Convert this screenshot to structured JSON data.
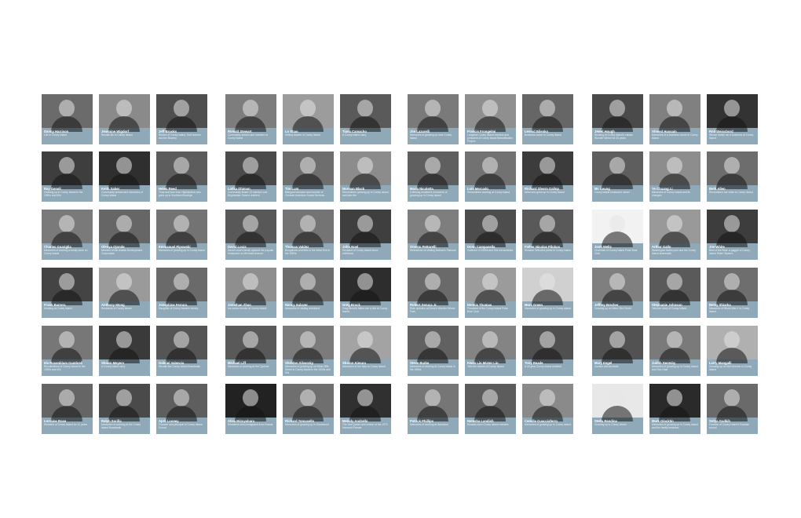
{
  "wall": {
    "panels": [
      {
        "cards": [
          {
            "name": "Danny Harrison",
            "desc": "Life in Coney Island",
            "tone": "#6b6b6b"
          },
          {
            "name": "Jeannine Wigdorf",
            "desc": "Recalls life in Coney Island",
            "tone": "#8a8a8a"
          },
          {
            "name": "Jeff Brooks",
            "desc": "Stories of Coney Island, Surf Avenue and the Bowery",
            "tone": "#4f4f4f"
          },
          {
            "name": "Ray Geneli",
            "desc": "Growing up in Coney Island in the 1950s and 60s",
            "tone": "#3e3e3e"
          },
          {
            "name": "Keith Saber",
            "desc": "Community activist and memories of Coney Island",
            "tone": "#2f2f2f"
          },
          {
            "name": "Helen Reed",
            "desc": "Trust and love from Highlanders who grew up in Southern Brooklyn",
            "tone": "#5c5c5c"
          },
          {
            "name": "Charles Guariglia",
            "desc": "Memories of working a family store on Coney Island",
            "tone": "#7a7a7a"
          },
          {
            "name": "Olenya Ojonde",
            "desc": "Member of the Astella Development Corporation",
            "tone": "#666666"
          },
          {
            "name": "Emmanuel Pipowski",
            "desc": "Memories of growing up in Coney Island",
            "tone": "#737373"
          },
          {
            "name": "Frank Barrera",
            "desc": "Working at Coney Island",
            "tone": "#444444"
          },
          {
            "name": "Anthony Wong",
            "desc": "Residents of Coney Island",
            "tone": "#9a9a9a"
          },
          {
            "name": "Josephine Ferrara",
            "desc": "Daughter of Coney Island's history",
            "tone": "#6a6a6a"
          },
          {
            "name": "Ida Rosenblum Gambrell",
            "desc": "Recollections of Coney Island in the 1930s and 40s",
            "tone": "#777777"
          },
          {
            "name": "Shawn Meyers",
            "desc": "A Coney Island story",
            "tone": "#3a3a3a"
          },
          {
            "name": "Gabriel Valencia",
            "desc": "Recalls the Coney Island Boardwalk",
            "tone": "#555555"
          },
          {
            "name": "Lorraine Rose",
            "desc": "Resident of Coney Island for 41 years",
            "tone": "#656565"
          },
          {
            "name": "Ralph Sorilla",
            "desc": "Memories of working at the Coney Island Boardwalk",
            "tone": "#4a4a4a"
          },
          {
            "name": "April Looney",
            "desc": "Founder and principal of Coney Island School",
            "tone": "#5e5e5e"
          }
        ]
      },
      {
        "cards": [
          {
            "name": "Ronald Stewart",
            "desc": "Community activist and member of Coney Island",
            "tone": "#7d7d7d"
          },
          {
            "name": "Lo Shao",
            "desc": "Selling sweets in Coney Island",
            "tone": "#9c9c9c"
          },
          {
            "name": "Tiana Camacho",
            "desc": "A Coney Island story",
            "tone": "#5a5a5a"
          },
          {
            "name": "Latika Dhiman",
            "desc": "Community Board 13 member and Brightwater Towers resident",
            "tone": "#4b4b4b"
          },
          {
            "name": "Tim Lum",
            "desc": "Bilingual educator and founder of Chinese American Social Services",
            "tone": "#6e6e6e"
          },
          {
            "name": "Norman Black",
            "desc": "Remembers growing up in Coney Island and later life",
            "tone": "#8c8c8c"
          },
          {
            "name": "David Louis",
            "desc": "David Louis's family opened the popular restaurant on Mermaid Avenue",
            "tone": "#585858"
          },
          {
            "name": "Thomas Valdez",
            "desc": "Bungalows and fires in the West End in the 1960s",
            "tone": "#747474"
          },
          {
            "name": "John Noel",
            "desc": "Resident of Coney Island since childhood",
            "tone": "#3f3f3f"
          },
          {
            "name": "Jonathan Zhao",
            "desc": "Ice cream vendor at Coney Island",
            "tone": "#8e8e8e"
          },
          {
            "name": "Nancy Sulaver",
            "desc": "Memories of visiting Astroland",
            "tone": "#6c6c6c"
          },
          {
            "name": "Greg Brock",
            "desc": "Greg Brock's father ran a ride at Coney Island",
            "tone": "#2d2d2d"
          },
          {
            "name": "Michael Liff",
            "desc": "Memories of working at the Cyclone",
            "tone": "#595959"
          },
          {
            "name": "Sheldon Silversky",
            "desc": "Memories of growing up on West 28th Street in Coney Island in the 1940s and 50s",
            "tone": "#7b7b7b"
          },
          {
            "name": "Sharon Kimura",
            "desc": "Memories of her trips to Coney Island",
            "tone": "#a3a3a3"
          },
          {
            "name": "Alisa Mizuyabara",
            "desc": "Residents who immigrated from Russia",
            "tone": "#222222"
          },
          {
            "name": "Richard Tomasello",
            "desc": "Memories of growing up in Gravesend",
            "tone": "#6f6f6f"
          },
          {
            "name": "Melody Andrello",
            "desc": "The Sea Queen and winner of the 1972 Mermaid Parade",
            "tone": "#303030"
          }
        ]
      },
      {
        "cards": [
          {
            "name": "Jim Lazarelli",
            "desc": "Memories of growing up near Coney Island",
            "tone": "#7a7a7a"
          },
          {
            "name": "Francis Frongelmi",
            "desc": "Longtime Coney Island resident and president of Coney Island Beautification Project",
            "tone": "#8f8f8f"
          },
          {
            "name": "Leonid Bilenko",
            "desc": "Business owner in Coney Island",
            "tone": "#666666"
          },
          {
            "name": "Maria Nicoletta",
            "desc": "A lifelong resident's memories of growing up in Coney Island",
            "tone": "#5f5f5f"
          },
          {
            "name": "Luis Mercado",
            "desc": "Remembers working at Coney Island",
            "tone": "#727272"
          },
          {
            "name": "Richard Sherm Gallop",
            "desc": "Artist who grew up in Coney Island",
            "tone": "#3c3c3c"
          },
          {
            "name": "Onesto Pettorelli",
            "desc": "Reflections on visiting Nathan's Famous",
            "tone": "#7e7e7e"
          },
          {
            "name": "Donn Campanella",
            "desc": "Collector of 1950s and 60s memorabilia",
            "tone": "#4d4d4d"
          },
          {
            "name": "Father Nicolas Pilobos",
            "desc": "Russian Orthodox priest in Coney Island",
            "tone": "#595959"
          },
          {
            "name": "Robert Seruca Jr.",
            "desc": "Ride operator at Deno's Wonder Wheel Park",
            "tone": "#6a6a6a"
          },
          {
            "name": "Dennis Thomas",
            "desc": "President of the Coney Island Polar Bear Club",
            "tone": "#9b9b9b"
          },
          {
            "name": "Marc Green",
            "desc": "Memories of growing up in Coney Island",
            "tone": "#d0d0d0"
          },
          {
            "name": "Steve Burke",
            "desc": "Memories of working at Coney Island in the 1960s",
            "tone": "#616161"
          },
          {
            "name": "Kwan Lin Mister Lin",
            "desc": "Tells the stories of Coney Island",
            "tone": "#848484"
          },
          {
            "name": "Tony Reade",
            "desc": "A 40-year Coney Island resident",
            "tone": "#505050"
          },
          {
            "name": "Patrick Phillips",
            "desc": "Memories of working at Astroland",
            "tone": "#767676"
          },
          {
            "name": "Natasha Landish",
            "desc": "Russian-born Coney Island resident",
            "tone": "#5c5c5c"
          },
          {
            "name": "Camille Guacciaferro",
            "desc": "Memories of growing up in Coney Island",
            "tone": "#8a8a8a"
          }
        ]
      },
      {
        "cards": [
          {
            "name": "Jewel Hough",
            "desc": "Working at Coney Island's classic Wonder Wheel for 30 years",
            "tone": "#4a4a4a"
          },
          {
            "name": "Ahmed Hussain",
            "desc": "Memories of a business owner in Coney Island",
            "tone": "#808080"
          },
          {
            "name": "Rob Weissbord",
            "desc": "Whose family ran a business at Coney Island",
            "tone": "#333333"
          },
          {
            "name": "Mr. Leung",
            "desc": "Coney Island restaurant owner",
            "tone": "#5e5e5e"
          },
          {
            "name": "Ye Chuang Li",
            "desc": "Memories of Coney Island and its changes",
            "tone": "#8d8d8d"
          },
          {
            "name": "Beth Allen",
            "desc": "Remembers her visits to Coney Island",
            "tone": "#6d6d6d"
          },
          {
            "name": "Josh Wells",
            "desc": "Chairman of Coney Island Polar Bear Club",
            "tone": "#f2f2f2"
          },
          {
            "name": "Arthur Gallo",
            "desc": "Washington Baths pool and the Coney Island boardwalk",
            "tone": "#999999"
          },
          {
            "name": "Joe White",
            "desc": "Best of the Best: a gaggle of Coney Island Roller Skaters",
            "tone": "#3d3d3d"
          },
          {
            "name": "Jeffrey Brezher",
            "desc": "Growing up on West 33rd Street",
            "tone": "#7f7f7f"
          },
          {
            "name": "Stephanie Johnson",
            "desc": "Tells her story of Coney Island",
            "tone": "#5a5a5a"
          },
          {
            "name": "Betsy Shiarka",
            "desc": "Memories of World War II in Coney Island",
            "tone": "#6e6e6e"
          },
          {
            "name": "Mary Engel",
            "desc": "Curator and archivist",
            "tone": "#525252"
          },
          {
            "name": "Judith Dentsby",
            "desc": "Memories of growing up in Coney Island and Sea Gate",
            "tone": "#7a7a7a"
          },
          {
            "name": "Larry Mangalli",
            "desc": "Growing up on Surf Avenue in Coney Island",
            "tone": "#b0b0b0"
          },
          {
            "name": "Stella Rendina",
            "desc": "Growing up in Coney Island",
            "tone": "#e8e8e8"
          },
          {
            "name": "Mark Glocktin",
            "desc": "Memories of growing up in Coney Island and the family business",
            "tone": "#2a2a2a"
          },
          {
            "name": "Sofya Gudkih",
            "desc": "Founder of Coney Island's Russian school",
            "tone": "#6a6a6a"
          }
        ]
      }
    ]
  }
}
